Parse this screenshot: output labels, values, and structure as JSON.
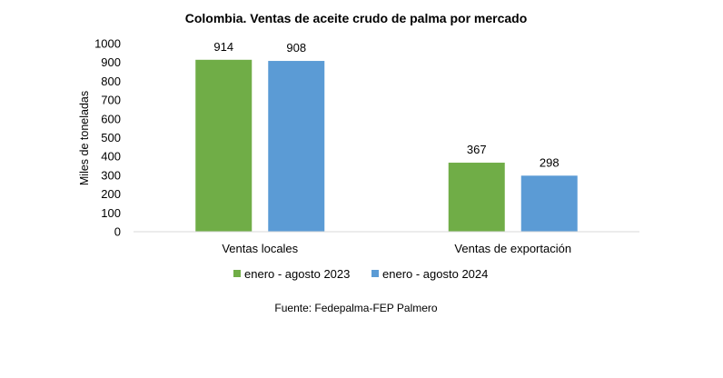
{
  "chart_data": {
    "type": "bar",
    "title": "Colombia. Ventas de aceite crudo de palma por mercado",
    "ylabel": "Miles de toneladas",
    "xlabel": "",
    "categories": [
      "Ventas locales",
      "Ventas de exportación"
    ],
    "series": [
      {
        "name": "enero - agosto 2023",
        "values": [
          914,
          367
        ],
        "color": "#70ad47"
      },
      {
        "name": "enero - agosto 2024",
        "values": [
          908,
          298
        ],
        "color": "#5b9bd5"
      }
    ],
    "ylim": [
      0,
      1000
    ],
    "yticks": [
      0,
      100,
      200,
      300,
      400,
      500,
      600,
      700,
      800,
      900,
      1000
    ],
    "grid": false,
    "legend": "bottom",
    "data_labels": true,
    "source": "Fuente: Fedepalma-FEP Palmero"
  }
}
